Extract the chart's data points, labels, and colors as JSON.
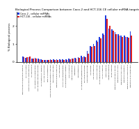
{
  "title": "Biological Process Comparison between Caco-2 and HCT-116 CE cellular miRNA targets",
  "ylabel": "% Biological process",
  "bar_color_caco2": "#1f3de0",
  "bar_color_hct116": "#e01f1f",
  "legend_caco2": "Caco-2 - cellular miRNAs",
  "legend_hct116": "HCT-116 - cellular miRNAs",
  "ylim": [
    0,
    2.8
  ],
  "yticks": [
    0,
    1.0,
    2.0
  ],
  "categories": [
    "signal transduction/neuronal signaling",
    "cell cycle control",
    "apoptosis and cell death signaling",
    "cell proliferation",
    "cell growth and differentiation",
    "DNA damage response and repair",
    "cell migration/cell adhesion",
    "cell fate commitment",
    "fatty acid metabolism",
    "immune response/inflammatory response",
    "transcription regulation",
    "regulation of gene expression",
    "RNA processing",
    "protein synthesis/translation",
    "proteolysis/ubiquitin pathway",
    "vesicle transport",
    "signaling pathways",
    "angiogenesis",
    "lipid metabolism",
    "cell development/differentiation",
    "Wnt signaling pathway",
    "developmental biology",
    "p53 pathway",
    "TGF beta signaling",
    "PI3K/AKT signaling",
    "MAPK signaling pathway",
    "JAK-STAT signaling",
    "Notch signaling",
    "Hedgehog signaling",
    "mTOR signaling",
    "regulation of metabolic process",
    "regulation of cell cycle",
    "regulation of transcription",
    "regulation of apoptosis",
    "regulation of cell differentiation",
    "regulation of cell proliferation"
  ],
  "caco2_values": [
    0.32,
    0.22,
    0.25,
    0.2,
    0.22,
    0.18,
    0.15,
    0.1,
    0.12,
    0.13,
    0.14,
    0.13,
    0.13,
    0.15,
    0.16,
    0.18,
    0.2,
    0.22,
    0.25,
    0.35,
    0.3,
    0.6,
    0.9,
    1.0,
    1.2,
    1.4,
    1.6,
    2.6,
    1.85,
    1.8,
    1.65,
    1.55,
    1.45,
    1.45,
    1.4,
    1.7
  ],
  "hct116_values": [
    0.28,
    0.25,
    0.3,
    0.18,
    0.2,
    0.15,
    0.12,
    0.1,
    0.1,
    0.12,
    0.12,
    0.1,
    0.1,
    0.12,
    0.12,
    0.14,
    0.18,
    0.2,
    0.22,
    0.28,
    0.25,
    0.45,
    0.85,
    0.9,
    1.1,
    1.3,
    1.5,
    2.4,
    2.0,
    1.75,
    1.55,
    1.45,
    1.38,
    1.4,
    1.35,
    1.45
  ],
  "title_fontsize": 3.0,
  "ylabel_fontsize": 2.8,
  "ytick_fontsize": 3.2,
  "xtick_fontsize": 1.6,
  "legend_fontsize": 2.4
}
